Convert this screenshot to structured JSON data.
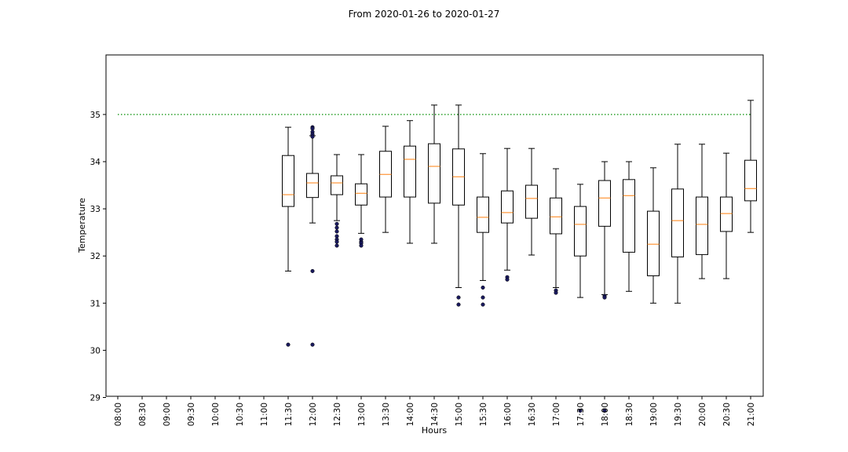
{
  "chart_data": {
    "type": "box",
    "title": "From 2020-01-26 to 2020-01-27",
    "xlabel": "Hours",
    "ylabel": "Temperature",
    "ylim": [
      28.4,
      35.6
    ],
    "yticks": [
      29,
      30,
      31,
      32,
      33,
      34,
      35
    ],
    "categories": [
      "08:00",
      "08:30",
      "09:00",
      "09:30",
      "10:00",
      "10:30",
      "11:00",
      "11:30",
      "12:00",
      "12:30",
      "13:00",
      "13:30",
      "14:00",
      "14:30",
      "15:00",
      "15:30",
      "16:00",
      "16:30",
      "17:00",
      "17:30",
      "18:00",
      "18:30",
      "19:00",
      "19:30",
      "20:00",
      "20:30",
      "21:00"
    ],
    "reference_line": {
      "y": 35.0,
      "style": "dotted",
      "color": "#2ca02c"
    },
    "colors": {
      "box": "#000000",
      "median": "#ff7f0e",
      "outlier": "#1a1a5e"
    },
    "boxes": [
      {
        "x": "11:30",
        "whislo": 31.68,
        "q1": 33.05,
        "med": 33.3,
        "q3": 34.13,
        "whishi": 34.73,
        "fliers": [
          30.12
        ]
      },
      {
        "x": "12:00",
        "whislo": 32.7,
        "q1": 33.24,
        "med": 33.55,
        "q3": 33.75,
        "whishi": 34.55,
        "fliers": [
          34.73,
          34.7,
          34.63,
          34.58,
          34.53,
          31.68,
          30.12
        ]
      },
      {
        "x": "12:30",
        "whislo": 32.75,
        "q1": 33.3,
        "med": 33.55,
        "q3": 33.7,
        "whishi": 34.15,
        "fliers": [
          32.68,
          32.6,
          32.52,
          32.42,
          32.35,
          32.3,
          32.22
        ]
      },
      {
        "x": "13:00",
        "whislo": 32.48,
        "q1": 33.08,
        "med": 33.33,
        "q3": 33.53,
        "whishi": 34.15,
        "fliers": [
          32.35,
          32.3,
          32.27,
          32.22
        ]
      },
      {
        "x": "13:30",
        "whislo": 32.5,
        "q1": 33.25,
        "med": 33.73,
        "q3": 34.22,
        "whishi": 34.75,
        "fliers": []
      },
      {
        "x": "14:00",
        "whislo": 32.27,
        "q1": 33.25,
        "med": 34.05,
        "q3": 34.33,
        "whishi": 34.87,
        "fliers": []
      },
      {
        "x": "14:30",
        "whislo": 32.27,
        "q1": 33.12,
        "med": 33.9,
        "q3": 34.38,
        "whishi": 35.2,
        "fliers": []
      },
      {
        "x": "15:00",
        "whislo": 31.33,
        "q1": 33.08,
        "med": 33.68,
        "q3": 34.27,
        "whishi": 35.2,
        "fliers": [
          31.12,
          30.97
        ]
      },
      {
        "x": "15:30",
        "whislo": 31.48,
        "q1": 32.5,
        "med": 32.82,
        "q3": 33.25,
        "whishi": 34.17,
        "fliers": [
          31.33,
          31.12,
          30.97
        ]
      },
      {
        "x": "16:00",
        "whislo": 31.7,
        "q1": 32.7,
        "med": 32.92,
        "q3": 33.38,
        "whishi": 34.28,
        "fliers": [
          31.55,
          31.5
        ]
      },
      {
        "x": "16:30",
        "whislo": 32.02,
        "q1": 32.8,
        "med": 33.22,
        "q3": 33.5,
        "whishi": 34.28,
        "fliers": []
      },
      {
        "x": "17:00",
        "whislo": 31.33,
        "q1": 32.47,
        "med": 32.83,
        "q3": 33.23,
        "whishi": 33.85,
        "fliers": [
          31.27,
          31.22
        ]
      },
      {
        "x": "17:30",
        "whislo": 31.12,
        "q1": 32.0,
        "med": 32.67,
        "q3": 33.05,
        "whishi": 33.52,
        "fliers": [
          28.72
        ]
      },
      {
        "x": "18:00",
        "whislo": 31.18,
        "q1": 32.63,
        "med": 33.23,
        "q3": 33.6,
        "whishi": 34.0,
        "fliers": [
          31.15,
          31.12,
          28.72
        ]
      },
      {
        "x": "18:30",
        "whislo": 31.25,
        "q1": 32.08,
        "med": 33.28,
        "q3": 33.62,
        "whishi": 34.0,
        "fliers": []
      },
      {
        "x": "19:00",
        "whislo": 31.0,
        "q1": 31.58,
        "med": 32.25,
        "q3": 32.95,
        "whishi": 33.87,
        "fliers": []
      },
      {
        "x": "19:30",
        "whislo": 31.0,
        "q1": 31.98,
        "med": 32.75,
        "q3": 33.42,
        "whishi": 34.37,
        "fliers": []
      },
      {
        "x": "20:00",
        "whislo": 31.52,
        "q1": 32.03,
        "med": 32.67,
        "q3": 33.25,
        "whishi": 34.37,
        "fliers": []
      },
      {
        "x": "20:30",
        "whislo": 31.52,
        "q1": 32.52,
        "med": 32.9,
        "q3": 33.25,
        "whishi": 34.18,
        "fliers": []
      },
      {
        "x": "21:00",
        "whislo": 32.5,
        "q1": 33.17,
        "med": 33.43,
        "q3": 34.03,
        "whishi": 35.3,
        "fliers": []
      }
    ]
  }
}
